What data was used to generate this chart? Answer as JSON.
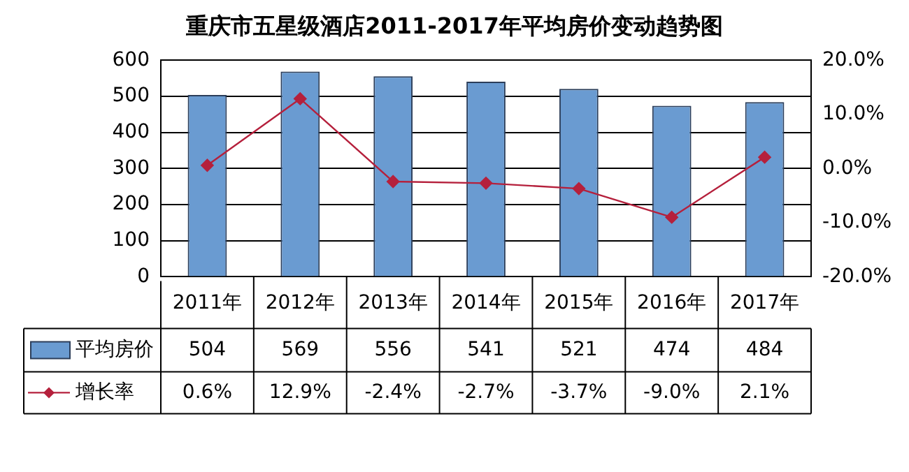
{
  "chart_data": {
    "type": "bar",
    "title": "重庆市五星级酒店2011-2017年平均房价变动趋势图",
    "categories": [
      "2011年",
      "2012年",
      "2013年",
      "2014年",
      "2015年",
      "2016年",
      "2017年"
    ],
    "series": [
      {
        "name": "平均房价",
        "color": "#6a9bd1",
        "values": [
          504,
          569,
          556,
          541,
          521,
          474,
          484
        ],
        "value_labels": [
          "504",
          "569",
          "556",
          "541",
          "521",
          "474",
          "484"
        ]
      },
      {
        "name": "增长率",
        "type": "line",
        "axis": "y2",
        "color": "#b5203c",
        "values": [
          0.6,
          12.9,
          -2.4,
          -2.7,
          -3.7,
          -9.0,
          2.1
        ],
        "value_labels": [
          "0.6%",
          "12.9%",
          "-2.4%",
          "-2.7%",
          "-3.7%",
          "-9.0%",
          "2.1%"
        ],
        "marker": "diamond",
        "line_style": "solid"
      }
    ],
    "ylim": [
      0,
      600
    ],
    "yticks": [
      0,
      100,
      200,
      300,
      400,
      500,
      600
    ],
    "y2lim": [
      -20,
      20
    ],
    "y2ticks": [
      {
        "value": -20,
        "label": "-20.0%"
      },
      {
        "value": -10,
        "label": "-10.0%"
      },
      {
        "value": 0,
        "label": "0.0%"
      },
      {
        "value": 10,
        "label": "10.0%"
      },
      {
        "value": 20,
        "label": "20.0%"
      }
    ],
    "grid": "y",
    "legend": "bottom"
  }
}
